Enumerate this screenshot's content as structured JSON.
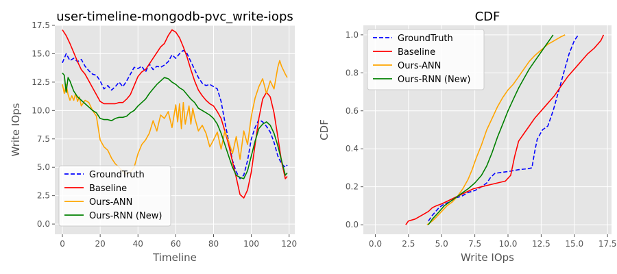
{
  "chart_data": [
    {
      "type": "line",
      "title": "user-timeline-mongodb-pvc_write-iops",
      "xlabel": "Timeline",
      "ylabel": "Write IOps",
      "xlim": [
        -4,
        123
      ],
      "ylim": [
        -0.9,
        17.5
      ],
      "xticks": [
        0,
        20,
        40,
        60,
        80,
        100,
        120
      ],
      "xtick_labels": [
        "0",
        "20",
        "40",
        "60",
        "80",
        "100",
        "120"
      ],
      "yticks": [
        0,
        2.5,
        5,
        7.5,
        10,
        12.5,
        15,
        17.5
      ],
      "ytick_labels": [
        "0.0",
        "2.5",
        "5.0",
        "7.5",
        "10.0",
        "12.5",
        "15.0",
        "17.5"
      ],
      "grid": true,
      "legend": "lower-left",
      "series": [
        {
          "name": "GroundTruth",
          "color": "#0000ff",
          "dash": "dashed",
          "x": [
            0,
            2,
            4,
            6,
            8,
            10,
            12,
            14,
            16,
            18,
            20,
            22,
            24,
            26,
            28,
            30,
            32,
            34,
            36,
            38,
            40,
            42,
            44,
            46,
            48,
            50,
            52,
            54,
            56,
            58,
            60,
            62,
            64,
            66,
            68,
            70,
            72,
            74,
            76,
            78,
            80,
            82,
            84,
            86,
            88,
            90,
            92,
            94,
            96,
            98,
            100,
            102,
            104,
            106,
            108,
            110,
            112,
            114,
            116,
            118,
            119
          ],
          "y": [
            14.2,
            15.0,
            14.4,
            14.6,
            14.3,
            14.5,
            13.9,
            13.5,
            13.2,
            13.1,
            12.6,
            11.9,
            12.2,
            11.8,
            12.1,
            12.5,
            12.1,
            12.6,
            13.2,
            13.8,
            13.7,
            13.9,
            13.4,
            14.1,
            13.6,
            13.9,
            13.8,
            14.0,
            14.3,
            14.9,
            14.6,
            15.0,
            15.3,
            15.0,
            14.3,
            13.6,
            12.9,
            12.4,
            12.2,
            12.3,
            12.1,
            11.9,
            10.8,
            9.0,
            7.3,
            5.6,
            4.6,
            4.0,
            4.3,
            5.6,
            7.5,
            8.5,
            9.2,
            9.0,
            8.6,
            8.1,
            7.2,
            6.0,
            5.3,
            5.0,
            5.2
          ]
        },
        {
          "name": "Baseline",
          "color": "#ff0000",
          "dash": "solid",
          "x": [
            0,
            2,
            4,
            6,
            8,
            10,
            12,
            14,
            16,
            18,
            20,
            22,
            24,
            26,
            28,
            30,
            32,
            34,
            36,
            38,
            40,
            42,
            44,
            46,
            48,
            50,
            52,
            54,
            56,
            58,
            60,
            62,
            64,
            66,
            68,
            70,
            72,
            74,
            76,
            78,
            80,
            82,
            84,
            86,
            88,
            90,
            92,
            94,
            96,
            98,
            100,
            102,
            104,
            106,
            108,
            110,
            112,
            114,
            116,
            118,
            119
          ],
          "y": [
            17.1,
            16.6,
            15.9,
            15.1,
            14.3,
            13.6,
            13.2,
            12.6,
            12.0,
            11.4,
            10.8,
            10.6,
            10.6,
            10.6,
            10.6,
            10.7,
            10.7,
            11.0,
            11.4,
            12.2,
            13.0,
            13.4,
            13.6,
            14.1,
            14.6,
            15.1,
            15.6,
            15.9,
            16.6,
            17.1,
            16.9,
            16.4,
            15.6,
            14.7,
            13.6,
            12.6,
            11.8,
            11.3,
            10.9,
            10.6,
            10.4,
            9.9,
            9.3,
            8.2,
            7.0,
            5.5,
            4.1,
            2.6,
            2.3,
            3.0,
            4.6,
            7.0,
            9.3,
            11.0,
            11.6,
            11.2,
            9.8,
            7.7,
            5.5,
            4.0,
            4.2
          ]
        },
        {
          "name": "Ours-ANN",
          "color": "#ffa500",
          "dash": "solid",
          "x": [
            0,
            1,
            2,
            3,
            4,
            5,
            6,
            7,
            8,
            9,
            10,
            12,
            14,
            16,
            18,
            20,
            22,
            24,
            26,
            28,
            30,
            32,
            34,
            36,
            38,
            40,
            42,
            44,
            46,
            48,
            50,
            52,
            54,
            56,
            58,
            60,
            61,
            62,
            63,
            64,
            65,
            66,
            67,
            68,
            69,
            70,
            72,
            74,
            76,
            78,
            80,
            82,
            84,
            86,
            88,
            90,
            92,
            94,
            96,
            98,
            100,
            102,
            104,
            106,
            108,
            110,
            112,
            114,
            115,
            116,
            118,
            119
          ],
          "y": [
            12.3,
            11.5,
            12.3,
            11.4,
            10.9,
            11.3,
            10.9,
            11.5,
            10.8,
            11.2,
            10.4,
            10.9,
            10.7,
            10.0,
            9.5,
            7.4,
            6.8,
            6.5,
            5.8,
            5.3,
            5.0,
            4.6,
            4.4,
            4.6,
            5.0,
            6.2,
            7.0,
            7.4,
            8.0,
            9.1,
            8.2,
            9.6,
            9.3,
            9.9,
            8.5,
            10.5,
            9.0,
            10.6,
            8.4,
            10.7,
            8.8,
            9.6,
            10.4,
            8.8,
            10.2,
            9.4,
            8.2,
            8.7,
            8.0,
            6.8,
            7.4,
            8.1,
            6.6,
            8.2,
            7.3,
            6.2,
            7.7,
            5.7,
            8.2,
            7.0,
            9.5,
            11.1,
            12.1,
            12.8,
            11.5,
            12.6,
            11.9,
            13.8,
            14.4,
            13.9,
            13.2,
            12.9
          ]
        },
        {
          "name": "Ours-RNN (New)",
          "color": "#008000",
          "dash": "solid",
          "x": [
            0,
            1,
            2,
            3,
            4,
            6,
            8,
            10,
            12,
            14,
            16,
            18,
            20,
            22,
            24,
            26,
            28,
            30,
            32,
            34,
            36,
            38,
            40,
            42,
            44,
            46,
            48,
            50,
            52,
            54,
            56,
            58,
            60,
            62,
            64,
            66,
            68,
            70,
            72,
            74,
            76,
            78,
            80,
            82,
            84,
            86,
            88,
            90,
            92,
            94,
            96,
            98,
            100,
            102,
            104,
            106,
            108,
            110,
            112,
            114,
            116,
            118,
            119
          ],
          "y": [
            13.3,
            13.1,
            11.6,
            12.9,
            12.6,
            11.7,
            11.2,
            10.9,
            10.6,
            10.3,
            10.0,
            9.8,
            9.3,
            9.2,
            9.2,
            9.1,
            9.3,
            9.4,
            9.4,
            9.5,
            9.8,
            10.0,
            10.4,
            10.7,
            11.0,
            11.5,
            11.9,
            12.3,
            12.6,
            12.9,
            12.8,
            12.5,
            12.3,
            12.0,
            11.8,
            11.4,
            11.0,
            10.7,
            10.2,
            10.0,
            9.8,
            9.6,
            9.3,
            8.8,
            8.0,
            7.0,
            6.0,
            5.0,
            4.3,
            4.1,
            4.0,
            4.7,
            6.0,
            7.3,
            8.4,
            8.8,
            9.0,
            8.7,
            8.0,
            6.9,
            5.6,
            4.3,
            4.5
          ]
        }
      ]
    },
    {
      "type": "line",
      "title": "CDF",
      "xlabel": "Write IOps",
      "ylabel": "CDF",
      "xlim": [
        -0.9,
        17.8
      ],
      "ylim": [
        -0.05,
        1.05
      ],
      "xticks": [
        0,
        2.5,
        5,
        7.5,
        10,
        12.5,
        15,
        17.5
      ],
      "xtick_labels": [
        "0.0",
        "2.5",
        "5.0",
        "7.5",
        "10.0",
        "12.5",
        "15.0",
        "17.5"
      ],
      "yticks": [
        0,
        0.2,
        0.4,
        0.6,
        0.8,
        1.0
      ],
      "ytick_labels": [
        "0.0",
        "0.2",
        "0.4",
        "0.6",
        "0.8",
        "1.0"
      ],
      "grid": true,
      "legend": "top-left",
      "series": [
        {
          "name": "GroundTruth",
          "color": "#0000ff",
          "dash": "dashed",
          "x": [
            4.0,
            4.3,
            4.8,
            5.2,
            5.6,
            6.0,
            6.5,
            7.0,
            7.5,
            8.0,
            8.4,
            8.7,
            9.0,
            9.4,
            10.0,
            10.8,
            11.5,
            11.8,
            12.0,
            12.2,
            12.6,
            13.0,
            13.4,
            13.8,
            14.2,
            14.6,
            15.0,
            15.3
          ],
          "y": [
            0.02,
            0.05,
            0.09,
            0.11,
            0.12,
            0.14,
            0.15,
            0.17,
            0.18,
            0.2,
            0.22,
            0.25,
            0.27,
            0.275,
            0.28,
            0.29,
            0.295,
            0.3,
            0.38,
            0.45,
            0.5,
            0.52,
            0.6,
            0.7,
            0.8,
            0.9,
            0.97,
            1.0
          ]
        },
        {
          "name": "Baseline",
          "color": "#ff0000",
          "dash": "solid",
          "x": [
            2.3,
            2.5,
            3.0,
            3.5,
            4.0,
            4.3,
            4.6,
            5.0,
            5.6,
            6.2,
            6.8,
            7.4,
            8.0,
            8.6,
            9.2,
            9.8,
            10.2,
            10.5,
            10.8,
            11.2,
            11.6,
            12.0,
            12.5,
            13.0,
            13.5,
            14.0,
            14.5,
            15.0,
            15.5,
            16.0,
            16.5,
            17.0,
            17.2
          ],
          "y": [
            0.0,
            0.02,
            0.03,
            0.05,
            0.07,
            0.09,
            0.1,
            0.11,
            0.13,
            0.15,
            0.17,
            0.19,
            0.2,
            0.21,
            0.22,
            0.23,
            0.26,
            0.36,
            0.44,
            0.48,
            0.52,
            0.56,
            0.6,
            0.64,
            0.68,
            0.73,
            0.78,
            0.82,
            0.86,
            0.9,
            0.93,
            0.97,
            1.0
          ]
        },
        {
          "name": "Ours-ANN",
          "color": "#ffa500",
          "dash": "solid",
          "x": [
            3.9,
            4.3,
            4.6,
            5.0,
            5.4,
            5.8,
            6.2,
            6.6,
            7.0,
            7.3,
            7.6,
            8.0,
            8.4,
            8.8,
            9.2,
            9.6,
            10.0,
            10.4,
            10.8,
            11.2,
            11.6,
            12.0,
            12.5,
            13.0,
            13.5,
            14.0,
            14.3
          ],
          "y": [
            0.0,
            0.02,
            0.04,
            0.07,
            0.1,
            0.12,
            0.15,
            0.19,
            0.24,
            0.29,
            0.35,
            0.42,
            0.5,
            0.56,
            0.62,
            0.67,
            0.71,
            0.74,
            0.78,
            0.82,
            0.86,
            0.89,
            0.92,
            0.95,
            0.97,
            0.99,
            1.0
          ]
        },
        {
          "name": "Ours-RNN (New)",
          "color": "#008000",
          "dash": "solid",
          "x": [
            4.0,
            4.3,
            4.7,
            5.2,
            5.8,
            6.4,
            7.0,
            7.5,
            8.0,
            8.4,
            8.8,
            9.2,
            9.6,
            10.0,
            10.4,
            10.8,
            11.2,
            11.6,
            12.0,
            12.4,
            12.8,
            13.2,
            13.4
          ],
          "y": [
            0.0,
            0.03,
            0.06,
            0.1,
            0.13,
            0.16,
            0.19,
            0.22,
            0.26,
            0.31,
            0.38,
            0.46,
            0.53,
            0.6,
            0.66,
            0.72,
            0.77,
            0.82,
            0.86,
            0.9,
            0.94,
            0.98,
            1.0
          ]
        }
      ]
    }
  ]
}
